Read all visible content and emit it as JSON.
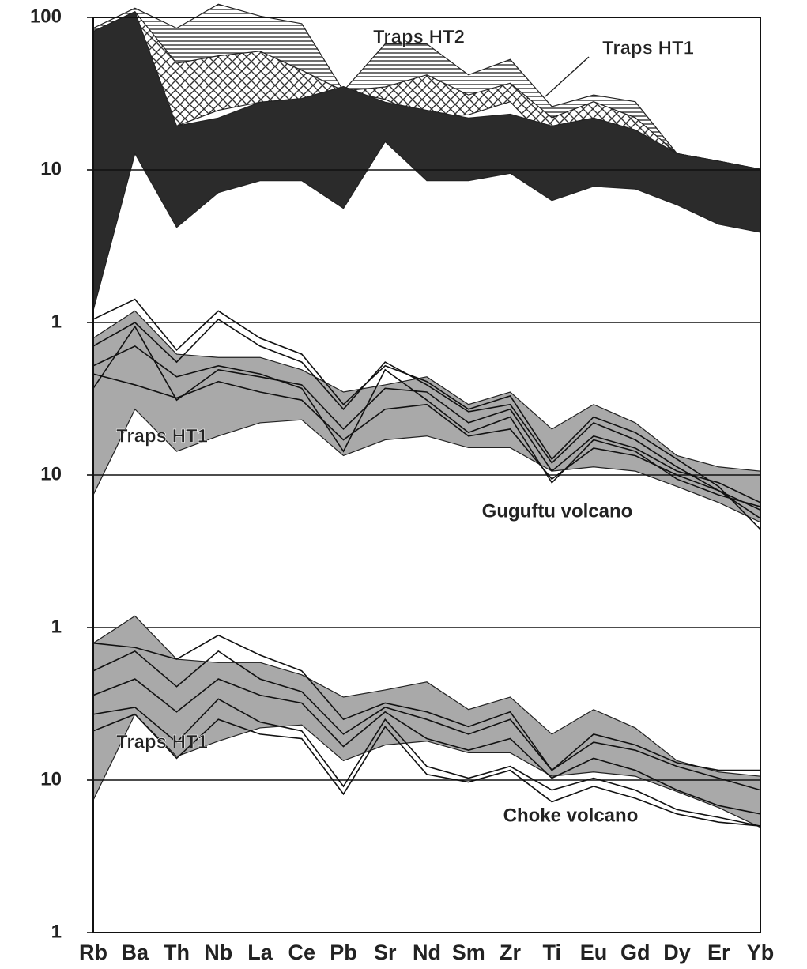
{
  "chart_data": [
    {
      "type": "spider",
      "log_y": true,
      "ylim": [
        1,
        100
      ],
      "yticks": [
        1,
        10,
        100
      ],
      "series": [
        {
          "name": "Traps HT2",
          "fill": "hlines",
          "upper": [
            85,
            115,
            85,
            122,
            102,
            91,
            33,
            67,
            67,
            42,
            53,
            26,
            31,
            28,
            12.8,
            11.4,
            10.1
          ],
          "lower": [
            28,
            30,
            19,
            28,
            28,
            29,
            33,
            31,
            28,
            29,
            29,
            14.4,
            17.3,
            18.3,
            12.8,
            11.4,
            10.1
          ]
        },
        {
          "name": "Traps HT1",
          "fill": "cross",
          "upper": [
            81,
            109,
            50,
            56,
            60,
            45,
            33,
            35,
            42,
            31,
            37,
            22,
            28,
            22,
            12.8,
            11.4,
            10.1
          ],
          "lower": [
            28,
            45,
            19.4,
            24.6,
            27.8,
            29,
            33,
            29,
            22,
            23,
            28,
            14.4,
            18.3,
            17.3,
            12.1,
            10.8,
            9.5
          ]
        },
        {
          "fill": "#2b2b2b",
          "upper": [
            81,
            109,
            19.4,
            21.9,
            27.8,
            29.4,
            35.2,
            27.8,
            24.6,
            21.9,
            23.2,
            19.4,
            21.9,
            18.3,
            12.8,
            11.4,
            10.1
          ],
          "lower": [
            1.2,
            12.8,
            4.2,
            7.1,
            8.5,
            8.5,
            5.6,
            15.3,
            8.5,
            8.5,
            9.5,
            6.3,
            7.8,
            7.5,
            5.9,
            4.4,
            3.9
          ]
        }
      ]
    },
    {
      "type": "spider",
      "log_y": true,
      "ylim": [
        1,
        100
      ],
      "yticks": [
        1,
        10
      ],
      "annotation": "Guguftu volcano",
      "series": [
        {
          "name": "Traps HT1",
          "fill": "#a9a9a9",
          "upper": [
            79,
            119,
            62,
            59,
            59,
            49,
            35,
            39,
            44,
            29,
            35,
            20,
            29,
            22,
            13.4,
            11.3,
            10.6
          ],
          "lower": [
            7.4,
            27,
            14.3,
            18,
            22,
            23,
            13.4,
            17,
            18,
            15.1,
            15.1,
            10.6,
            11.3,
            10.6,
            8.4,
            6.6,
            4.9
          ]
        },
        {
          "color": "#111111",
          "values": [
            105,
            142,
            66,
            119,
            79,
            62,
            29,
            52,
            41,
            27,
            33,
            12.7,
            24,
            19,
            12.7,
            8.4,
            4.4
          ]
        },
        {
          "color": "#111111",
          "values": [
            70,
            100,
            55,
            105,
            70,
            55,
            27,
            55,
            39,
            26,
            29,
            12,
            22,
            17,
            11.3,
            7.9,
            5.2
          ]
        },
        {
          "color": "#111111",
          "values": [
            37,
            94,
            31,
            49,
            44,
            39,
            20,
            37,
            35,
            22,
            27,
            10.6,
            18,
            15,
            10.6,
            8.9,
            6.6
          ]
        },
        {
          "color": "#111111",
          "values": [
            46,
            39,
            32,
            41,
            35,
            31,
            17,
            27,
            29,
            18,
            20,
            9.4,
            15,
            13.4,
            10,
            7.9,
            5.9
          ]
        },
        {
          "color": "#111111",
          "values": [
            52,
            70,
            44,
            52,
            46,
            37,
            14.3,
            49,
            31,
            19,
            24,
            8.9,
            17,
            14.3,
            9.4,
            7.4,
            6.2
          ]
        }
      ]
    },
    {
      "type": "spider",
      "log_y": true,
      "ylim": [
        1,
        100
      ],
      "yticks": [
        1,
        10
      ],
      "annotation": "Choke volcano",
      "categories": [
        "Rb",
        "Ba",
        "Th",
        "Nb",
        "La",
        "Ce",
        "Pb",
        "Sr",
        "Nd",
        "Sm",
        "Zr",
        "Ti",
        "Eu",
        "Gd",
        "Dy",
        "Er",
        "Yb"
      ],
      "series": [
        {
          "name": "Traps HT1",
          "fill": "#a9a9a9",
          "upper": [
            79,
            119,
            62,
            59,
            59,
            49,
            35,
            39,
            44,
            29,
            35,
            20,
            29,
            22,
            13.4,
            11.3,
            10.6
          ],
          "lower": [
            7.4,
            27,
            14.3,
            18,
            22,
            23,
            13.4,
            17,
            18,
            15.1,
            15.1,
            10.6,
            11.3,
            10.6,
            8.4,
            6.6,
            4.9
          ]
        },
        {
          "color": "#111111",
          "values": [
            79,
            74,
            62,
            89,
            66,
            52,
            25,
            32,
            28,
            22.4,
            28,
            11.6,
            20,
            17,
            13,
            11.6,
            11.6
          ]
        },
        {
          "color": "#111111",
          "values": [
            52,
            70,
            41,
            70,
            46,
            38,
            20,
            30,
            25,
            20,
            25,
            11.6,
            17.7,
            15.7,
            12.3,
            10.3,
            8.6
          ]
        },
        {
          "color": "#111111",
          "values": [
            36,
            46,
            28,
            46,
            36,
            32,
            16.6,
            28,
            18.7,
            15.7,
            18.7,
            10.3,
            13.9,
            11.6,
            8.6,
            6.8,
            6
          ]
        },
        {
          "color": "#111111",
          "values": [
            27,
            30,
            17.7,
            34,
            24,
            21,
            9.1,
            25,
            12.3,
            10.3,
            12.3,
            8.6,
            10.3,
            8.6,
            6.4,
            5.7,
            5
          ]
        },
        {
          "color": "#111111",
          "values": [
            21,
            27,
            13.9,
            25,
            20,
            18.7,
            8.1,
            22.4,
            10.9,
            9.7,
            11.6,
            7.2,
            9.1,
            7.6,
            6,
            5.3,
            5
          ]
        }
      ]
    }
  ]
}
